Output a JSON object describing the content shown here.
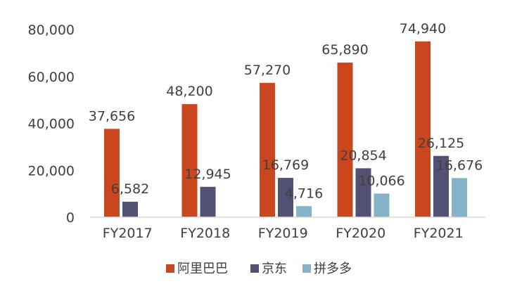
{
  "chart_data": {
    "type": "bar",
    "categories": [
      "FY2017",
      "FY2018",
      "FY2019",
      "FY2020",
      "FY2021"
    ],
    "series": [
      {
        "name": "阿里巴巴",
        "color": "#c9461f",
        "values": [
          37656,
          48200,
          57270,
          65890,
          74940
        ],
        "labels": [
          "37,656",
          "48,200",
          "57,270",
          "65,890",
          "74,940"
        ]
      },
      {
        "name": "京东",
        "color": "#525073",
        "values": [
          6582,
          12945,
          16769,
          20854,
          26125
        ],
        "labels": [
          "6,582",
          "12,945",
          "16,769",
          "20,854",
          "26,125"
        ]
      },
      {
        "name": "拼多多",
        "color": "#84b3c8",
        "values": [
          null,
          null,
          4716,
          10066,
          16676
        ],
        "labels": [
          "",
          "",
          "4,716",
          "10,066",
          "16,676"
        ]
      }
    ],
    "ylim": [
      0,
      80000
    ],
    "yticks": [
      0,
      20000,
      40000,
      60000,
      80000
    ],
    "ytick_labels": [
      "0",
      "20,000",
      "40,000",
      "60,000",
      "80,000"
    ],
    "grid": false,
    "legend": "bottom"
  }
}
